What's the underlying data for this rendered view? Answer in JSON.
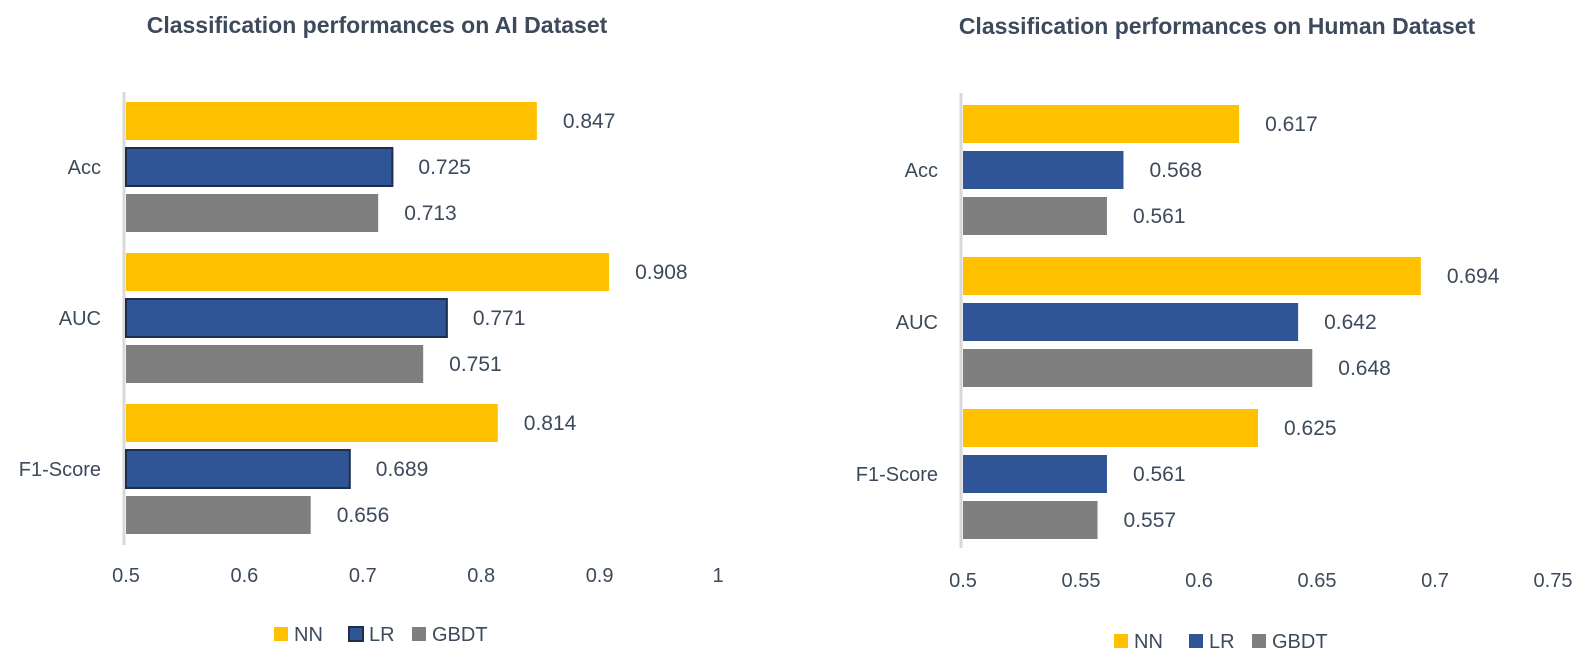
{
  "colors": {
    "NN": "#ffc000",
    "LR": "#2f5597",
    "GBDT": "#7f7f7f",
    "LR_edge": "#1f2d4d",
    "axis": "#d9d9d9",
    "text": "#3d4a5c"
  },
  "chart_data": [
    {
      "type": "bar",
      "orientation": "horizontal",
      "title": "Classification performances on AI Dataset",
      "categories": [
        "Acc",
        "AUC",
        "F1-Score"
      ],
      "series": [
        {
          "name": "NN",
          "values": [
            0.847,
            0.908,
            0.814
          ]
        },
        {
          "name": "LR",
          "values": [
            0.725,
            0.771,
            0.689
          ]
        },
        {
          "name": "GBDT",
          "values": [
            0.713,
            0.751,
            0.656
          ]
        }
      ],
      "value_labels": [
        [
          "0.847",
          "0.908",
          "0.814"
        ],
        [
          "0.725",
          "0.771",
          "0.689"
        ],
        [
          "0.713",
          "0.751",
          "0.656"
        ]
      ],
      "xlim": [
        0.5,
        1.0
      ],
      "xticks": [
        "0.5",
        "0.6",
        "0.7",
        "0.8",
        "0.9",
        "1"
      ],
      "grid": false,
      "legend": "bottom"
    },
    {
      "type": "bar",
      "orientation": "horizontal",
      "title": "Classification performances on Human Dataset",
      "categories": [
        "Acc",
        "AUC",
        "F1-Score"
      ],
      "series": [
        {
          "name": "NN",
          "values": [
            0.617,
            0.694,
            0.625
          ]
        },
        {
          "name": "LR",
          "values": [
            0.568,
            0.642,
            0.561
          ]
        },
        {
          "name": "GBDT",
          "values": [
            0.561,
            0.648,
            0.557
          ]
        }
      ],
      "value_labels": [
        [
          "0.617",
          "0.694",
          "0.625"
        ],
        [
          "0.568",
          "0.642",
          "0.561"
        ],
        [
          "0.561",
          "0.648",
          "0.557"
        ]
      ],
      "xlim": [
        0.5,
        0.75
      ],
      "xticks": [
        "0.5",
        "0.55",
        "0.6",
        "0.65",
        "0.7",
        "0.75"
      ],
      "grid": false,
      "legend": "bottom"
    }
  ]
}
